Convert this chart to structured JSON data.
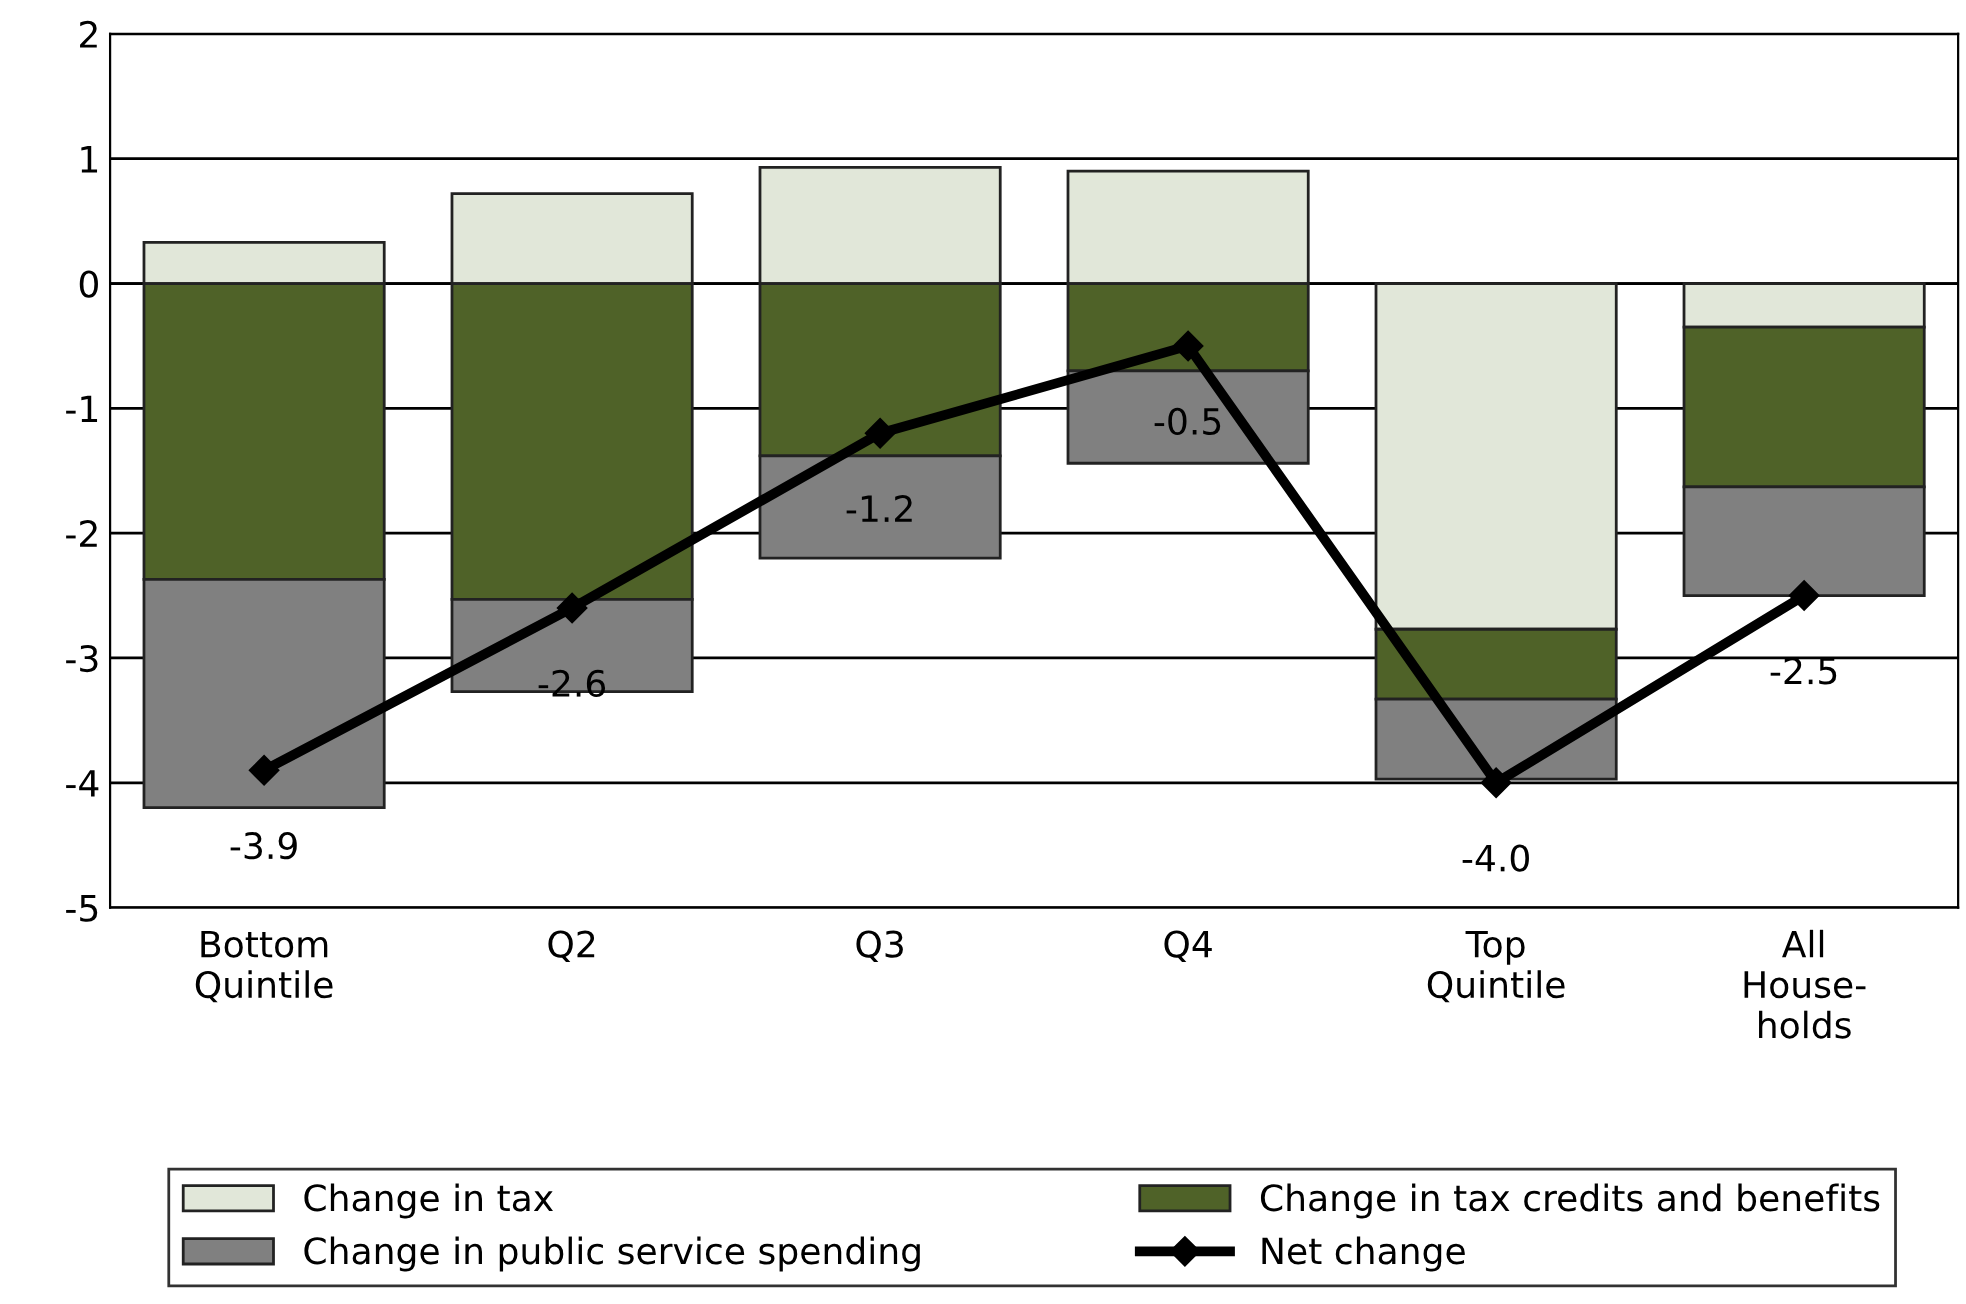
{
  "chart_data": {
    "type": "bar",
    "stacked": true,
    "categories": [
      "Bottom\nQuintile",
      "Q2",
      "Q3",
      "Q4",
      "Top\nQuintile",
      "All\nHouse-\nholds"
    ],
    "series": [
      {
        "name": "Change in tax",
        "color": "#e1e7d9",
        "values": [
          0.33,
          0.72,
          0.93,
          0.9,
          -2.77,
          -0.35
        ]
      },
      {
        "name": "Change in tax credits and benefits",
        "color": "#4f6228",
        "values": [
          -2.37,
          -2.53,
          -1.38,
          -0.7,
          -0.56,
          -1.28
        ]
      },
      {
        "name": "Change in public service spending",
        "color": "#808080",
        "values": [
          -1.83,
          -0.74,
          -0.82,
          -0.74,
          -0.64,
          -0.87
        ]
      },
      {
        "name": "Net change",
        "type": "line",
        "color": "#000000",
        "marker": "diamond",
        "values": [
          -3.9,
          -2.6,
          -1.2,
          -0.5,
          -4.0,
          -2.5
        ],
        "value_labels": [
          "-3.9",
          "-2.6",
          "-1.2",
          "-0.5",
          "-4.0",
          "-2.5"
        ]
      }
    ],
    "ylim": [
      -5,
      2
    ],
    "yticks": [
      -5,
      -4,
      -3,
      -2,
      -1,
      0,
      1,
      2
    ],
    "grid": "y",
    "legend": "bottom"
  }
}
